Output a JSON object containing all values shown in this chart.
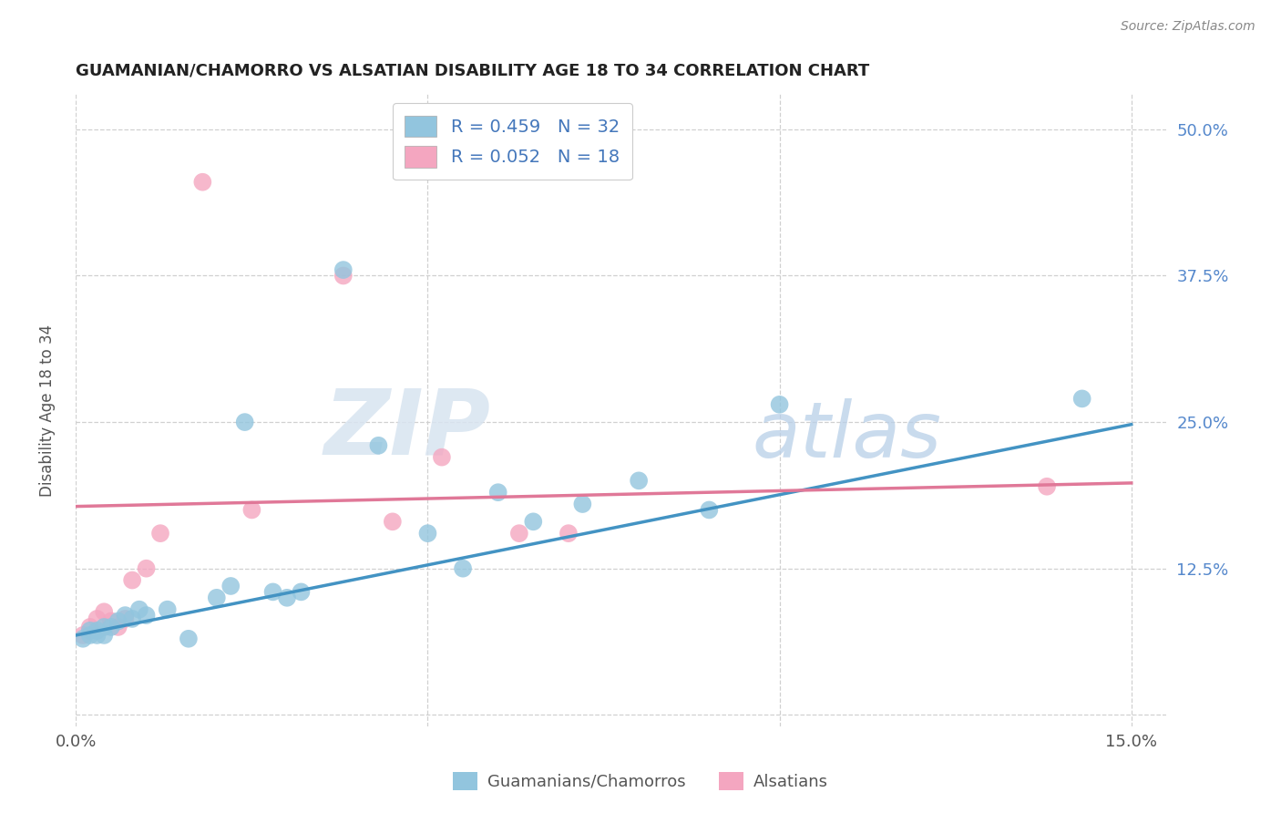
{
  "title": "GUAMANIAN/CHAMORRO VS ALSATIAN DISABILITY AGE 18 TO 34 CORRELATION CHART",
  "source": "Source: ZipAtlas.com",
  "ylabel": "Disability Age 18 to 34",
  "xlim": [
    0.0,
    0.155
  ],
  "ylim": [
    -0.01,
    0.53
  ],
  "xticks": [
    0.0,
    0.05,
    0.1,
    0.15
  ],
  "xticklabels": [
    "0.0%",
    "",
    "",
    "15.0%"
  ],
  "yticks": [
    0.0,
    0.125,
    0.25,
    0.375,
    0.5
  ],
  "yticklabels": [
    "",
    "12.5%",
    "25.0%",
    "37.5%",
    "50.0%"
  ],
  "blue_color": "#92c5de",
  "pink_color": "#f4a6c0",
  "blue_line_color": "#4393c3",
  "pink_line_color": "#e07898",
  "grid_color": "#d0d0d0",
  "legend_R_blue": "0.459",
  "legend_N_blue": "32",
  "legend_R_pink": "0.052",
  "legend_N_pink": "18",
  "legend_label_blue": "Guamanians/Chamorros",
  "legend_label_pink": "Alsatians",
  "blue_x": [
    0.001,
    0.002,
    0.002,
    0.003,
    0.003,
    0.004,
    0.004,
    0.005,
    0.006,
    0.007,
    0.008,
    0.009,
    0.01,
    0.013,
    0.016,
    0.02,
    0.022,
    0.024,
    0.028,
    0.03,
    0.032,
    0.038,
    0.043,
    0.05,
    0.055,
    0.06,
    0.065,
    0.072,
    0.08,
    0.09,
    0.1,
    0.143
  ],
  "blue_y": [
    0.065,
    0.068,
    0.072,
    0.068,
    0.072,
    0.075,
    0.068,
    0.075,
    0.08,
    0.085,
    0.082,
    0.09,
    0.085,
    0.09,
    0.065,
    0.1,
    0.11,
    0.25,
    0.105,
    0.1,
    0.105,
    0.38,
    0.23,
    0.155,
    0.125,
    0.19,
    0.165,
    0.18,
    0.2,
    0.175,
    0.265,
    0.27
  ],
  "pink_x": [
    0.001,
    0.002,
    0.003,
    0.004,
    0.005,
    0.006,
    0.007,
    0.008,
    0.01,
    0.012,
    0.018,
    0.025,
    0.038,
    0.045,
    0.052,
    0.063,
    0.07,
    0.138
  ],
  "pink_y": [
    0.068,
    0.075,
    0.082,
    0.088,
    0.08,
    0.075,
    0.082,
    0.115,
    0.125,
    0.155,
    0.455,
    0.175,
    0.375,
    0.165,
    0.22,
    0.155,
    0.155,
    0.195
  ],
  "blue_line_x0": 0.0,
  "blue_line_y0": 0.068,
  "blue_line_x1": 0.15,
  "blue_line_y1": 0.248,
  "pink_line_x0": 0.0,
  "pink_line_y0": 0.178,
  "pink_line_x1": 0.15,
  "pink_line_y1": 0.198
}
